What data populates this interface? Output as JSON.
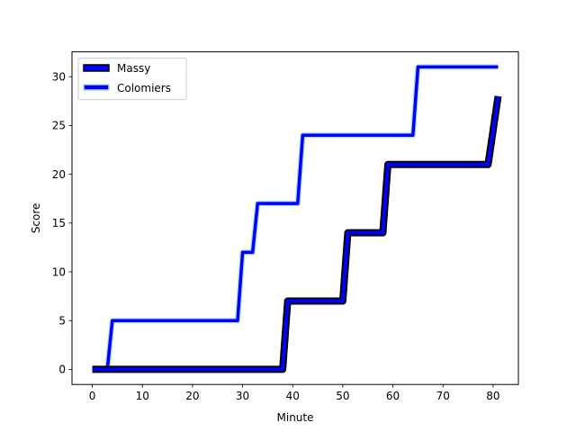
{
  "chart_data": {
    "type": "line",
    "title": "",
    "xlabel": "Minute",
    "ylabel": "Score",
    "xlim": [
      -4.05,
      85.05
    ],
    "ylim": [
      -1.55,
      32.55
    ],
    "xticks": [
      0,
      10,
      20,
      30,
      40,
      50,
      60,
      70,
      80
    ],
    "yticks": [
      0,
      5,
      10,
      15,
      20,
      25,
      30
    ],
    "grid": false,
    "legend_position": "top-left",
    "series": [
      {
        "name": "Massy",
        "color": "#0000ff",
        "outline_color": "#000000",
        "points": [
          [
            0,
            0
          ],
          [
            38,
            0
          ],
          [
            39,
            7
          ],
          [
            50,
            7
          ],
          [
            51,
            14
          ],
          [
            58,
            14
          ],
          [
            59,
            21
          ],
          [
            79,
            21
          ],
          [
            81,
            28
          ]
        ]
      },
      {
        "name": "Colomiers",
        "color": "#0000ff",
        "outline_color": "#add8e6",
        "points": [
          [
            0,
            0
          ],
          [
            3,
            0
          ],
          [
            4,
            5
          ],
          [
            29,
            5
          ],
          [
            30,
            12
          ],
          [
            32,
            12
          ],
          [
            33,
            17
          ],
          [
            41,
            17
          ],
          [
            42,
            24
          ],
          [
            64,
            24
          ],
          [
            65,
            31
          ],
          [
            81,
            31
          ]
        ]
      }
    ]
  }
}
